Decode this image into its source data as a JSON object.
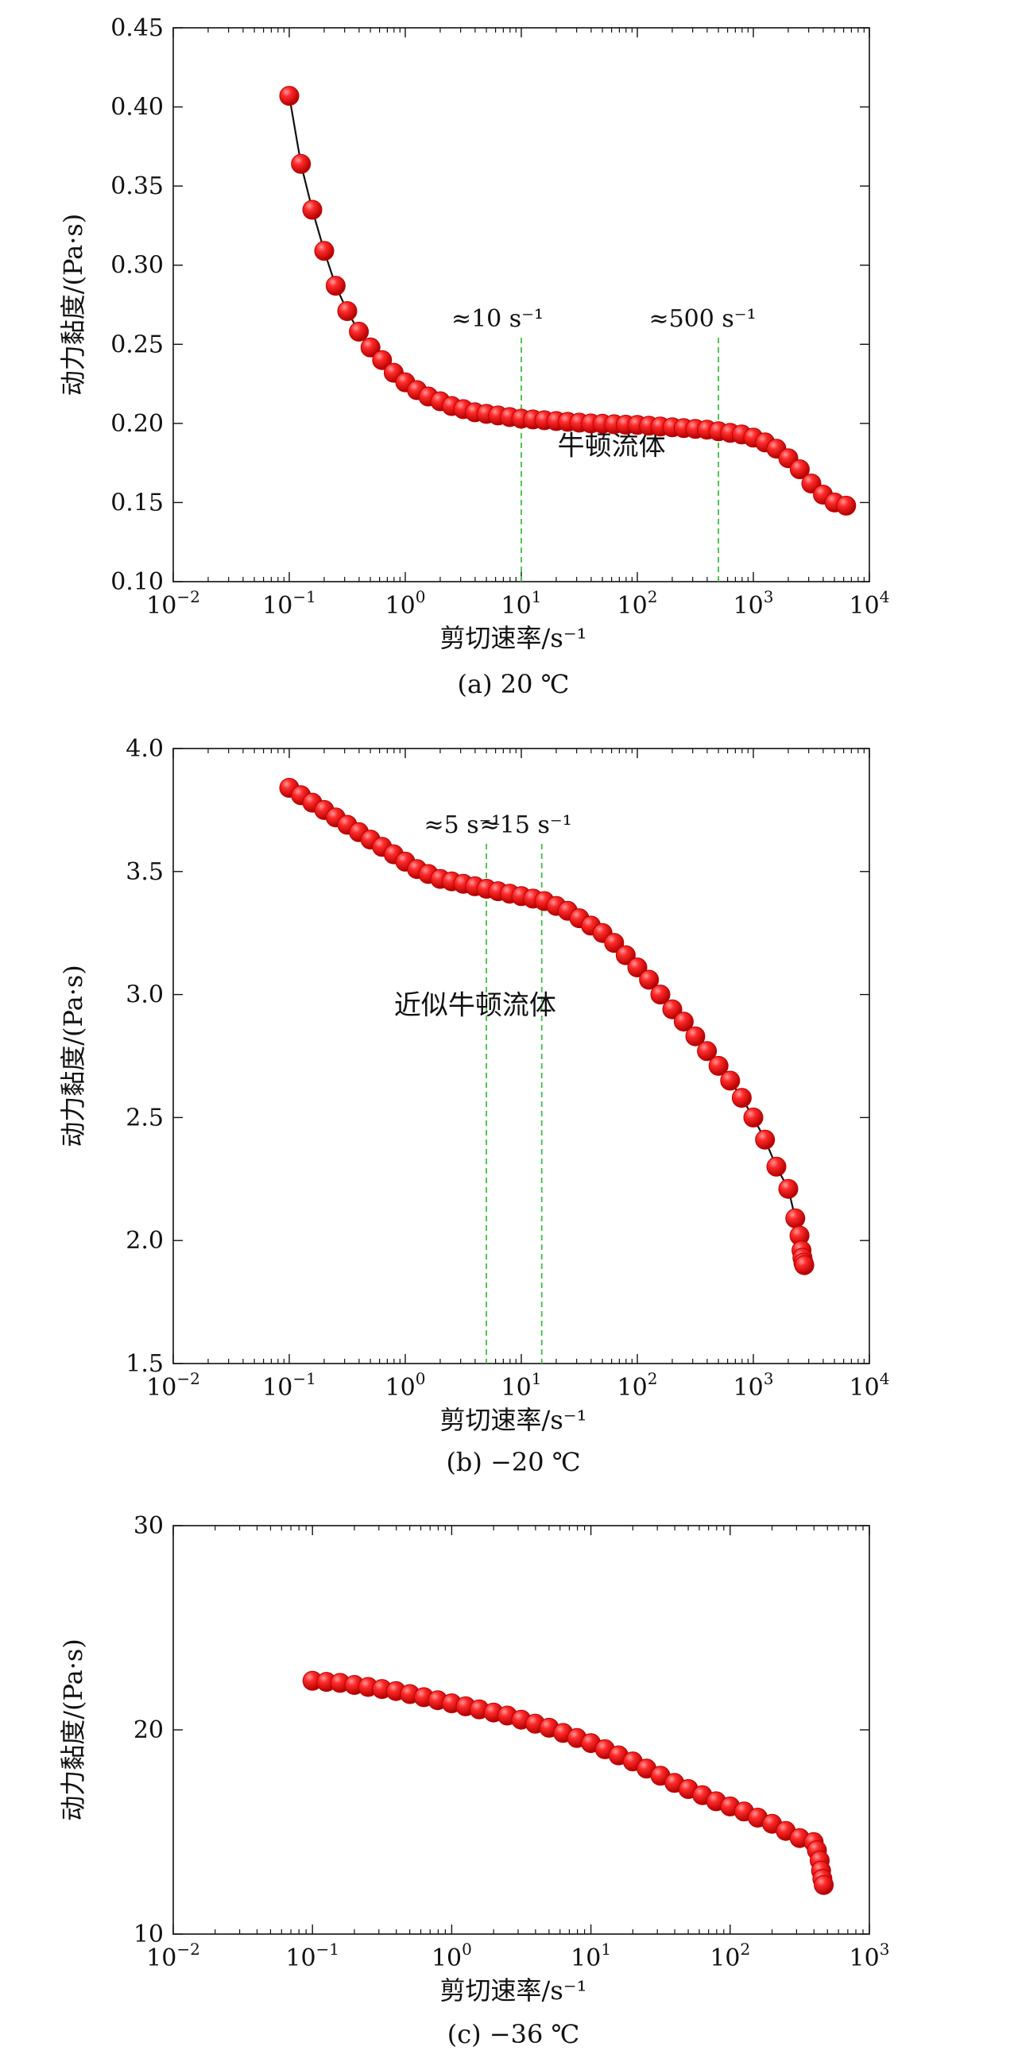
{
  "chart_data": [
    {
      "type": "scatter",
      "xlabel": "剪切速率/s⁻¹",
      "ylabel": "动力黏度/(Pa·s)",
      "caption": "(a) 20 ℃",
      "xscale": "log",
      "xlim": [
        0.01,
        10000
      ],
      "ylim": [
        0.1,
        0.45
      ],
      "xticks": [
        {
          "v": 0.01,
          "base": "10",
          "exp": "−2"
        },
        {
          "v": 0.1,
          "base": "10",
          "exp": "−1"
        },
        {
          "v": 1,
          "base": "10",
          "exp": "0"
        },
        {
          "v": 10,
          "base": "10",
          "exp": "1"
        },
        {
          "v": 100,
          "base": "10",
          "exp": "2"
        },
        {
          "v": 1000,
          "base": "10",
          "exp": "3"
        },
        {
          "v": 10000,
          "base": "10",
          "exp": "4"
        }
      ],
      "yticks": [
        "0.10",
        "0.15",
        "0.20",
        "0.25",
        "0.30",
        "0.35",
        "0.40",
        "0.45"
      ],
      "grid": false,
      "vlines": [
        {
          "x": 10,
          "label": "≈10 s⁻¹"
        },
        {
          "x": 500,
          "label": "≈500 s⁻¹"
        }
      ],
      "annotations": [
        {
          "text": "牛顿流体",
          "x": 60,
          "y": 0.18
        }
      ],
      "x": [
        0.1,
        0.126,
        0.158,
        0.2,
        0.251,
        0.316,
        0.398,
        0.501,
        0.631,
        0.794,
        1,
        1.26,
        1.58,
        2,
        2.51,
        3.16,
        3.98,
        5.01,
        6.31,
        7.94,
        10,
        12.6,
        15.8,
        20,
        25.1,
        31.6,
        39.8,
        50.1,
        63.1,
        79.4,
        100,
        126,
        158,
        200,
        251,
        316,
        398,
        501,
        631,
        794,
        1000,
        1260,
        1580,
        2000,
        2510,
        3160,
        3980,
        5010,
        6310
      ],
      "y": [
        0.407,
        0.364,
        0.335,
        0.309,
        0.287,
        0.271,
        0.258,
        0.248,
        0.24,
        0.232,
        0.226,
        0.221,
        0.217,
        0.214,
        0.211,
        0.209,
        0.207,
        0.206,
        0.205,
        0.204,
        0.203,
        0.2025,
        0.202,
        0.2015,
        0.201,
        0.2005,
        0.2,
        0.1998,
        0.1995,
        0.1992,
        0.199,
        0.1985,
        0.198,
        0.1975,
        0.197,
        0.1965,
        0.196,
        0.195,
        0.194,
        0.193,
        0.191,
        0.188,
        0.184,
        0.178,
        0.171,
        0.162,
        0.155,
        0.15,
        0.148
      ]
    },
    {
      "type": "scatter",
      "xlabel": "剪切速率/s⁻¹",
      "ylabel": "动力黏度/(Pa·s)",
      "caption": "(b) −20 ℃",
      "xscale": "log",
      "xlim": [
        0.01,
        10000
      ],
      "ylim": [
        1.5,
        4.0
      ],
      "xticks": [
        {
          "v": 0.01,
          "base": "10",
          "exp": "−2"
        },
        {
          "v": 0.1,
          "base": "10",
          "exp": "−1"
        },
        {
          "v": 1,
          "base": "10",
          "exp": "0"
        },
        {
          "v": 10,
          "base": "10",
          "exp": "1"
        },
        {
          "v": 100,
          "base": "10",
          "exp": "2"
        },
        {
          "v": 1000,
          "base": "10",
          "exp": "3"
        },
        {
          "v": 10000,
          "base": "10",
          "exp": "4"
        }
      ],
      "yticks": [
        "1.5",
        "2.0",
        "2.5",
        "3.0",
        "3.5",
        "4.0"
      ],
      "grid": false,
      "vlines": [
        {
          "x": 5,
          "label": "≈5 s⁻¹"
        },
        {
          "x": 15,
          "label": "≈15 s⁻¹"
        }
      ],
      "annotations": [
        {
          "text": "近似牛顿流体",
          "x": 4,
          "y": 2.92
        }
      ],
      "x": [
        0.1,
        0.126,
        0.158,
        0.2,
        0.251,
        0.316,
        0.398,
        0.501,
        0.631,
        0.794,
        1,
        1.26,
        1.58,
        2,
        2.51,
        3.16,
        3.98,
        5.01,
        6.31,
        7.94,
        10,
        12.6,
        15.8,
        20,
        25.1,
        31.6,
        39.8,
        50.1,
        63.1,
        79.4,
        100,
        126,
        158,
        200,
        251,
        316,
        398,
        501,
        631,
        794,
        1000,
        1260,
        1580,
        2000,
        2300,
        2500,
        2600,
        2650,
        2700,
        2750
      ],
      "y": [
        3.84,
        3.81,
        3.78,
        3.75,
        3.72,
        3.69,
        3.66,
        3.63,
        3.6,
        3.57,
        3.54,
        3.51,
        3.49,
        3.47,
        3.46,
        3.45,
        3.44,
        3.43,
        3.42,
        3.41,
        3.4,
        3.39,
        3.38,
        3.36,
        3.34,
        3.31,
        3.28,
        3.25,
        3.21,
        3.16,
        3.11,
        3.06,
        3.0,
        2.94,
        2.89,
        2.83,
        2.77,
        2.71,
        2.65,
        2.58,
        2.5,
        2.41,
        2.3,
        2.21,
        2.09,
        2.02,
        1.96,
        1.93,
        1.91,
        1.9
      ]
    },
    {
      "type": "scatter",
      "xlabel": "剪切速率/s⁻¹",
      "ylabel": "动力黏度/(Pa·s)",
      "caption": "(c) −36 ℃",
      "xscale": "log",
      "xlim": [
        0.01,
        1000
      ],
      "ylim": [
        10,
        30
      ],
      "xticks": [
        {
          "v": 0.01,
          "base": "10",
          "exp": "−2"
        },
        {
          "v": 0.1,
          "base": "10",
          "exp": "−1"
        },
        {
          "v": 1,
          "base": "10",
          "exp": "0"
        },
        {
          "v": 10,
          "base": "10",
          "exp": "1"
        },
        {
          "v": 100,
          "base": "10",
          "exp": "2"
        },
        {
          "v": 1000,
          "base": "10",
          "exp": "3"
        }
      ],
      "yticks": [
        "10",
        "20",
        "30"
      ],
      "grid": false,
      "vlines": [],
      "annotations": [],
      "x": [
        0.1,
        0.126,
        0.158,
        0.2,
        0.251,
        0.316,
        0.398,
        0.501,
        0.631,
        0.794,
        1,
        1.26,
        1.58,
        2,
        2.51,
        3.16,
        3.98,
        5.01,
        6.31,
        7.94,
        10,
        12.6,
        15.8,
        20,
        25.1,
        31.6,
        39.8,
        50.1,
        63.1,
        79.4,
        100,
        126,
        158,
        200,
        251,
        316,
        398,
        420,
        440,
        450,
        460,
        470
      ],
      "y": [
        22.4,
        22.35,
        22.3,
        22.2,
        22.1,
        22.0,
        21.9,
        21.75,
        21.6,
        21.45,
        21.3,
        21.15,
        21.0,
        20.85,
        20.7,
        20.5,
        20.3,
        20.1,
        19.85,
        19.6,
        19.35,
        19.05,
        18.75,
        18.45,
        18.1,
        17.75,
        17.4,
        17.1,
        16.8,
        16.5,
        16.25,
        16.0,
        15.7,
        15.4,
        15.05,
        14.7,
        14.5,
        14.1,
        13.6,
        13.1,
        12.7,
        12.4
      ]
    }
  ]
}
